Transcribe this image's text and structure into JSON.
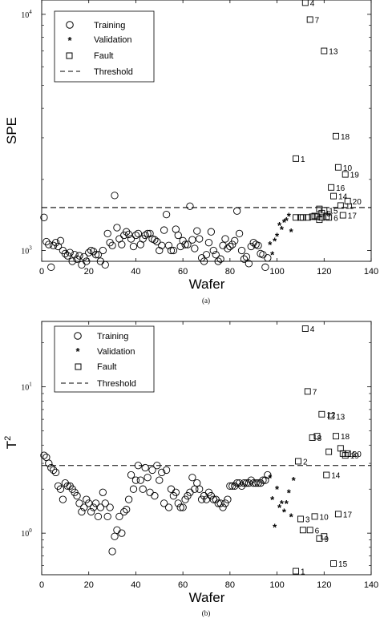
{
  "chart_data": [
    {
      "panel_label": "(a)",
      "type": "scatter",
      "scale_y": "log",
      "ylabel": "SPE",
      "xlabel": "Wafer",
      "xlim": [
        0,
        140
      ],
      "ylim": [
        900,
        11500
      ],
      "x_ticks": [
        "0",
        "20",
        "40",
        "60",
        "80",
        "100",
        "120",
        "140"
      ],
      "y_ticks": [
        {
          "label": "10",
          "exp": "3",
          "value": 1000
        },
        {
          "label": "10",
          "exp": "4",
          "value": 10000
        }
      ],
      "legend": {
        "position": "top-left",
        "entries": [
          {
            "label": "Training",
            "marker": "circle"
          },
          {
            "label": "Validation",
            "marker": "star"
          },
          {
            "label": "Fault",
            "marker": "square"
          },
          {
            "label": "Threshold",
            "marker": "dashed-line"
          }
        ]
      },
      "threshold": 1520,
      "series": [
        {
          "name": "Training",
          "marker": "circle",
          "x": [
            1,
            2,
            3,
            4,
            5,
            6,
            7,
            8,
            9,
            10,
            11,
            12,
            13,
            14,
            15,
            16,
            17,
            18,
            19,
            20,
            21,
            22,
            23,
            24,
            25,
            26,
            27,
            28,
            29,
            30,
            31,
            32,
            33,
            34,
            35,
            36,
            37,
            38,
            39,
            40,
            41,
            42,
            43,
            44,
            45,
            46,
            47,
            48,
            49,
            50,
            51,
            52,
            53,
            54,
            55,
            56,
            57,
            58,
            59,
            60,
            61,
            62,
            63,
            64,
            65,
            66,
            67,
            68,
            69,
            70,
            71,
            72,
            73,
            74,
            75,
            76,
            77,
            78,
            79,
            80,
            81,
            82,
            83,
            84,
            85,
            86,
            87,
            88,
            89,
            90,
            91,
            92,
            93,
            94,
            95,
            96
          ],
          "y": [
            1380,
            1090,
            1060,
            850,
            1050,
            1080,
            1040,
            1100,
            1000,
            970,
            950,
            980,
            900,
            960,
            920,
            950,
            870,
            940,
            900,
            980,
            1000,
            990,
            960,
            960,
            900,
            1000,
            870,
            1180,
            1080,
            1050,
            1710,
            1250,
            1120,
            1060,
            1160,
            1200,
            1170,
            1120,
            1040,
            1160,
            1180,
            1060,
            1120,
            1160,
            1180,
            1180,
            1120,
            1110,
            1090,
            1000,
            1050,
            1220,
            1420,
            1050,
            1000,
            1000,
            1230,
            1160,
            1040,
            1100,
            1060,
            1060,
            1540,
            1110,
            1020,
            1210,
            1120,
            930,
            900,
            960,
            1080,
            1200,
            1000,
            960,
            900,
            920,
            1050,
            1120,
            1020,
            1040,
            1060,
            1100,
            1470,
            1180,
            1000,
            920,
            940,
            880,
            1040,
            1080,
            1060,
            1050,
            970,
            960,
            850,
            930
          ]
        },
        {
          "name": "Validation",
          "marker": "star",
          "x": [
            97,
            98,
            99,
            100,
            101,
            102,
            103,
            104,
            105,
            106
          ],
          "y": [
            1060,
            960,
            1100,
            1150,
            1280,
            1230,
            1320,
            1340,
            1400,
            1200
          ]
        },
        {
          "name": "Fault",
          "marker": "square",
          "x": [
            112,
            114,
            108,
            120,
            119,
            118,
            108,
            110,
            111,
            113,
            115,
            116,
            117,
            118,
            119,
            120,
            121,
            122,
            123,
            124,
            125,
            126,
            127,
            128,
            129,
            130
          ],
          "y": [
            11200,
            9500,
            2450,
            7000,
            1380,
            1500,
            1380,
            1380,
            1380,
            1380,
            1390,
            1400,
            1390,
            1350,
            1440,
            1480,
            1390,
            1380,
            1850,
            1700,
            3050,
            2250,
            1550,
            1410,
            2100,
            1620
          ],
          "point_labels": [
            "4",
            "7",
            "1",
            "13",
            "",
            "",
            "",
            "",
            "",
            "",
            "",
            "",
            "",
            "",
            "5",
            "15",
            "",
            "6",
            "16",
            "14",
            "18",
            "10",
            "11",
            "17",
            "19",
            "20"
          ]
        }
      ]
    },
    {
      "panel_label": "(b)",
      "type": "scatter",
      "scale_y": "log",
      "ylabel": "T",
      "ylabel_sup": "2",
      "xlabel": "Wafer",
      "xlim": [
        0,
        140
      ],
      "ylim": [
        0.52,
        28
      ],
      "x_ticks": [
        "0",
        "20",
        "40",
        "60",
        "80",
        "100",
        "120",
        "140"
      ],
      "y_ticks": [
        {
          "label": "10",
          "exp": "0",
          "value": 1
        },
        {
          "label": "10",
          "exp": "1",
          "value": 10
        }
      ],
      "legend": {
        "position": "top-left",
        "entries": [
          {
            "label": "Training",
            "marker": "circle"
          },
          {
            "label": "Validation",
            "marker": "star"
          },
          {
            "label": "Fault",
            "marker": "square"
          },
          {
            "label": "Threshold",
            "marker": "dashed-line"
          }
        ]
      },
      "threshold": 2.9,
      "series": [
        {
          "name": "Training",
          "marker": "circle",
          "x": [
            1,
            2,
            3,
            4,
            5,
            6,
            7,
            8,
            9,
            10,
            11,
            12,
            13,
            14,
            15,
            16,
            17,
            18,
            19,
            20,
            21,
            22,
            23,
            24,
            25,
            26,
            27,
            28,
            29,
            30,
            31,
            32,
            33,
            34,
            35,
            36,
            37,
            38,
            39,
            40,
            41,
            42,
            43,
            44,
            45,
            46,
            47,
            48,
            49,
            50,
            51,
            52,
            53,
            54,
            55,
            56,
            57,
            58,
            59,
            60,
            61,
            62,
            63,
            64,
            65,
            66,
            67,
            68,
            69,
            70,
            71,
            72,
            73,
            74,
            75,
            76,
            77,
            78,
            79,
            80,
            81,
            82,
            83,
            84,
            85,
            86,
            87,
            88,
            89,
            90,
            91,
            92,
            93,
            94,
            95,
            96
          ],
          "y": [
            3.4,
            3.3,
            3.0,
            2.8,
            2.7,
            2.6,
            2.1,
            2.0,
            1.7,
            2.2,
            2.1,
            2.1,
            2.0,
            1.9,
            1.8,
            1.6,
            1.4,
            1.5,
            1.7,
            1.6,
            1.4,
            1.5,
            1.6,
            1.3,
            1.5,
            1.9,
            1.6,
            1.3,
            1.5,
            0.75,
            0.95,
            1.05,
            1.3,
            1.0,
            1.4,
            1.45,
            1.7,
            2.5,
            2.0,
            2.3,
            2.9,
            2.3,
            2.0,
            2.8,
            2.4,
            1.9,
            2.7,
            1.8,
            2.9,
            2.3,
            2.6,
            1.6,
            2.7,
            1.5,
            2.0,
            1.8,
            1.9,
            1.6,
            1.5,
            1.5,
            1.7,
            1.8,
            1.9,
            2.4,
            2.0,
            2.2,
            2.0,
            1.7,
            1.8,
            1.7,
            1.9,
            1.8,
            1.7,
            1.7,
            1.6,
            1.6,
            1.5,
            1.6,
            1.7,
            2.1,
            2.1,
            2.1,
            2.2,
            2.2,
            2.1,
            2.2,
            2.2,
            2.2,
            2.3,
            2.2,
            2.2,
            2.2,
            2.2,
            2.3,
            2.3,
            2.5
          ]
        },
        {
          "name": "Validation",
          "marker": "star",
          "x": [
            97,
            98,
            99,
            100,
            101,
            102,
            103,
            104,
            105,
            106,
            107
          ],
          "y": [
            2.4,
            1.7,
            1.1,
            2.0,
            1.5,
            1.6,
            1.4,
            1.6,
            1.9,
            1.3,
            2.3
          ]
        },
        {
          "name": "Fault",
          "marker": "square",
          "x": [
            108,
            109,
            110,
            111,
            112,
            113,
            114,
            115,
            116,
            117,
            118,
            119,
            120,
            121,
            122,
            123,
            124,
            125,
            126,
            127,
            128,
            129,
            130
          ],
          "y": [
            0.55,
            3.1,
            1.25,
            1.05,
            25.0,
            9.3,
            1.05,
            4.5,
            1.3,
            4.6,
            0.92,
            6.5,
            0.95,
            2.5,
            3.6,
            6.3,
            0.62,
            4.6,
            1.35,
            3.8,
            3.5,
            3.4,
            3.5
          ],
          "point_labels": [
            "1",
            "2",
            "3",
            "",
            "4",
            "7",
            "6",
            "8",
            "10",
            "",
            "9",
            "12",
            "",
            "14",
            "",
            "13",
            "15",
            "18",
            "17",
            "",
            "11",
            "19",
            "20"
          ]
        }
      ]
    }
  ]
}
